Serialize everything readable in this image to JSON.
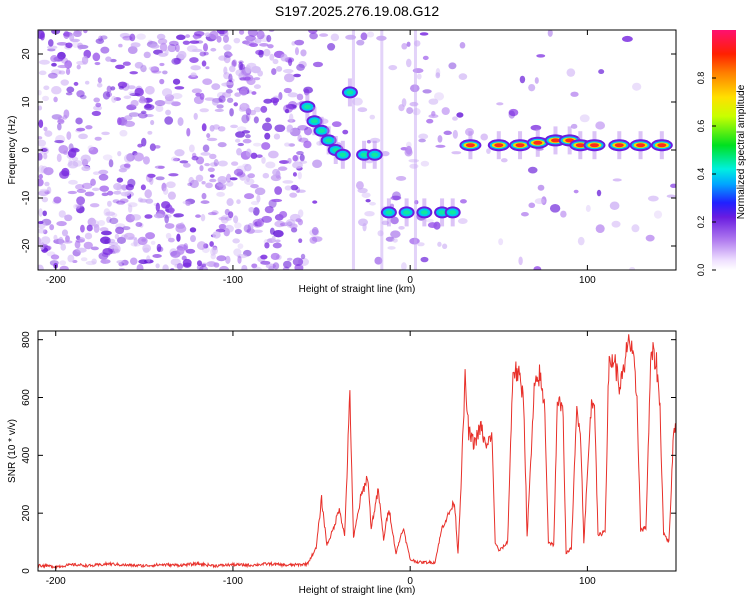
{
  "title": "S197.2025.276.19.08.G12",
  "chart_data": [
    {
      "type": "heatmap",
      "xlabel": "Height of straight line (km)",
      "ylabel": "Frequency (Hz)",
      "xlim": [
        -210,
        150
      ],
      "ylim": [
        -25,
        25
      ],
      "x_ticks": [
        -200,
        -100,
        0,
        100
      ],
      "y_ticks": [
        -20,
        -10,
        0,
        10,
        20
      ],
      "colorbar": {
        "label": "Normalized spectral amplitude",
        "range": [
          0,
          1
        ],
        "ticks": [
          "0.0",
          "0.2",
          "0.4",
          "0.6",
          "0.8"
        ]
      },
      "ridge": [
        {
          "x": -58,
          "f": 9
        },
        {
          "x": -54,
          "f": 6
        },
        {
          "x": -50,
          "f": 4
        },
        {
          "x": -46,
          "f": 2
        },
        {
          "x": -42,
          "f": 0
        },
        {
          "x": -38,
          "f": -1
        },
        {
          "x": -34,
          "f": 12
        },
        {
          "x": -26,
          "f": -1
        },
        {
          "x": -20,
          "f": -1
        },
        {
          "x": -12,
          "f": -13
        },
        {
          "x": -2,
          "f": -13
        },
        {
          "x": 8,
          "f": -13
        },
        {
          "x": 18,
          "f": -13
        },
        {
          "x": 24,
          "f": -13
        },
        {
          "x": 34,
          "f": 1
        },
        {
          "x": 50,
          "f": 1
        },
        {
          "x": 62,
          "f": 1
        },
        {
          "x": 72,
          "f": 1.5
        },
        {
          "x": 82,
          "f": 2
        },
        {
          "x": 90,
          "f": 2
        },
        {
          "x": 96,
          "f": 1
        },
        {
          "x": 104,
          "f": 1
        },
        {
          "x": 118,
          "f": 1
        },
        {
          "x": 130,
          "f": 1
        },
        {
          "x": 142,
          "f": 1
        }
      ]
    },
    {
      "type": "line",
      "xlabel": "Height of straight line (km)",
      "ylabel": "SNR (10 * v/v)",
      "xlim": [
        -210,
        150
      ],
      "ylim": [
        0,
        830
      ],
      "x_ticks": [
        -200,
        -100,
        0,
        100
      ],
      "y_ticks": [
        0,
        200,
        400,
        600,
        800
      ],
      "series": [
        {
          "name": "SNR",
          "color": "#e8302a",
          "points": [
            [
              -210,
              20
            ],
            [
              -200,
              15
            ],
            [
              -190,
              22
            ],
            [
              -180,
              18
            ],
            [
              -170,
              25
            ],
            [
              -160,
              20
            ],
            [
              -150,
              18
            ],
            [
              -140,
              22
            ],
            [
              -130,
              20
            ],
            [
              -120,
              25
            ],
            [
              -110,
              18
            ],
            [
              -100,
              22
            ],
            [
              -90,
              20
            ],
            [
              -80,
              25
            ],
            [
              -70,
              20
            ],
            [
              -62,
              22
            ],
            [
              -58,
              25
            ],
            [
              -53,
              80
            ],
            [
              -50,
              250
            ],
            [
              -47,
              90
            ],
            [
              -43,
              150
            ],
            [
              -40,
              220
            ],
            [
              -37,
              120
            ],
            [
              -34,
              610
            ],
            [
              -32,
              110
            ],
            [
              -28,
              250
            ],
            [
              -24,
              330
            ],
            [
              -22,
              150
            ],
            [
              -18,
              280
            ],
            [
              -15,
              110
            ],
            [
              -12,
              220
            ],
            [
              -8,
              60
            ],
            [
              -4,
              150
            ],
            [
              0,
              40
            ],
            [
              5,
              30
            ],
            [
              10,
              30
            ],
            [
              14,
              30
            ],
            [
              18,
              150
            ],
            [
              22,
              200
            ],
            [
              25,
              240
            ],
            [
              27,
              60
            ],
            [
              29,
              350
            ],
            [
              31,
              660
            ],
            [
              33,
              480
            ],
            [
              36,
              440
            ],
            [
              40,
              500
            ],
            [
              43,
              420
            ],
            [
              46,
              480
            ],
            [
              48,
              100
            ],
            [
              50,
              70
            ],
            [
              52,
              80
            ],
            [
              55,
              100
            ],
            [
              58,
              700
            ],
            [
              61,
              680
            ],
            [
              64,
              600
            ],
            [
              66,
              120
            ],
            [
              70,
              620
            ],
            [
              73,
              680
            ],
            [
              76,
              560
            ],
            [
              78,
              100
            ],
            [
              81,
              90
            ],
            [
              83,
              560
            ],
            [
              86,
              600
            ],
            [
              88,
              60
            ],
            [
              91,
              80
            ],
            [
              94,
              560
            ],
            [
              96,
              500
            ],
            [
              98,
              100
            ],
            [
              102,
              560
            ],
            [
              104,
              600
            ],
            [
              106,
              120
            ],
            [
              110,
              140
            ],
            [
              112,
              700
            ],
            [
              115,
              740
            ],
            [
              118,
              640
            ],
            [
              121,
              690
            ],
            [
              123,
              820
            ],
            [
              126,
              720
            ],
            [
              128,
              600
            ],
            [
              130,
              140
            ],
            [
              133,
              150
            ],
            [
              136,
              760
            ],
            [
              139,
              720
            ],
            [
              141,
              560
            ],
            [
              143,
              130
            ],
            [
              146,
              100
            ],
            [
              149,
              520
            ],
            [
              150,
              480
            ]
          ]
        }
      ]
    }
  ]
}
